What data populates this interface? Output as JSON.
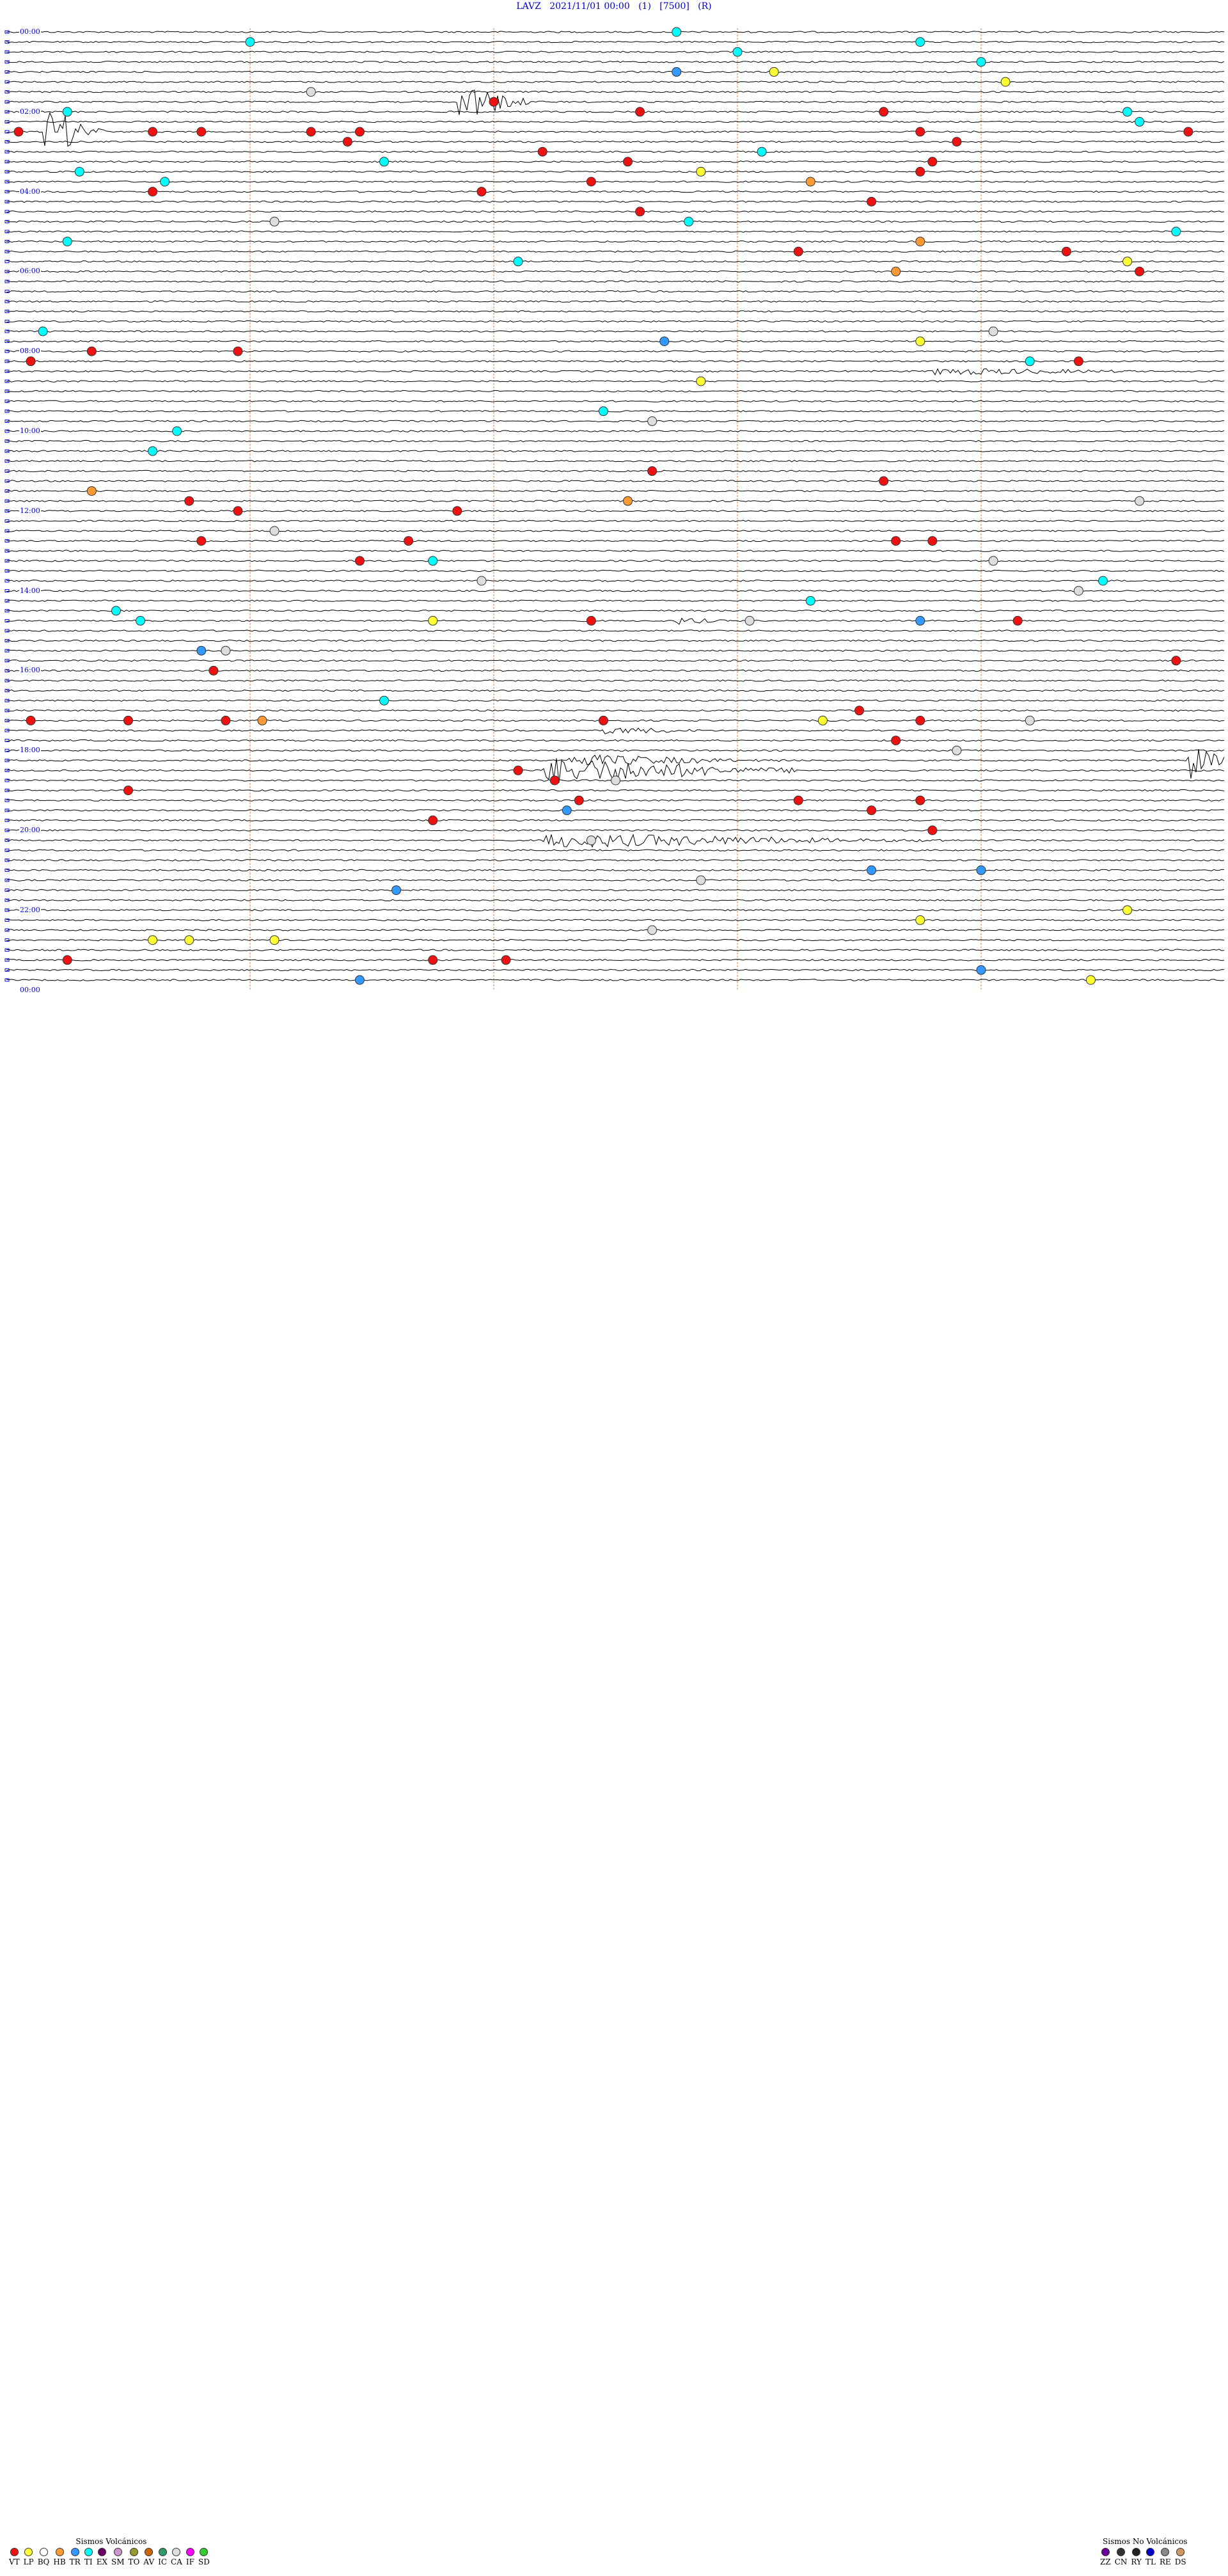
{
  "header": {
    "station": "LAVZ",
    "datetime": "2021/11/01 00:00",
    "component": "(1)",
    "gain": "[7500]",
    "flag": "(R)"
  },
  "chart_data": {
    "type": "helicorder",
    "title": "LAVZ   2021/11/01 00:00   (1)   [7500]   (R)",
    "rows": 96,
    "minutes_per_row": 15,
    "hour_labels": [
      "00:00",
      "02:00",
      "04:00",
      "06:00",
      "08:00",
      "10:00",
      "12:00",
      "14:00",
      "16:00",
      "18:00",
      "20:00",
      "22:00",
      "00:00"
    ],
    "trace_colors": [
      "#000000",
      "#000000"
    ],
    "minute_marks": [
      0.2,
      0.4,
      0.6,
      0.8
    ],
    "minute_mark_color": "#e08040",
    "events": [
      {
        "row": 0,
        "pos": 0.55,
        "type": "TI"
      },
      {
        "row": 1,
        "pos": 0.2,
        "type": "TI"
      },
      {
        "row": 1,
        "pos": 0.75,
        "type": "TI"
      },
      {
        "row": 2,
        "pos": 0.6,
        "type": "TI"
      },
      {
        "row": 3,
        "pos": 0.8,
        "type": "TI"
      },
      {
        "row": 4,
        "pos": 0.55,
        "type": "TR"
      },
      {
        "row": 4,
        "pos": 0.63,
        "type": "LP"
      },
      {
        "row": 5,
        "pos": 0.82,
        "type": "LP"
      },
      {
        "row": 6,
        "pos": 0.25,
        "type": "CA"
      },
      {
        "row": 7,
        "pos": 0.4,
        "type": "VT"
      },
      {
        "row": 8,
        "pos": 0.05,
        "type": "TI"
      },
      {
        "row": 8,
        "pos": 0.52,
        "type": "VT"
      },
      {
        "row": 8,
        "pos": 0.72,
        "type": "VT"
      },
      {
        "row": 8,
        "pos": 0.92,
        "type": "TI"
      },
      {
        "row": 9,
        "pos": 0.93,
        "type": "TI"
      },
      {
        "row": 10,
        "pos": 0.01,
        "type": "VT"
      },
      {
        "row": 10,
        "pos": 0.12,
        "type": "VT"
      },
      {
        "row": 10,
        "pos": 0.16,
        "type": "VT"
      },
      {
        "row": 10,
        "pos": 0.25,
        "type": "VT"
      },
      {
        "row": 10,
        "pos": 0.29,
        "type": "VT"
      },
      {
        "row": 10,
        "pos": 0.75,
        "type": "VT"
      },
      {
        "row": 10,
        "pos": 0.97,
        "type": "VT"
      },
      {
        "row": 11,
        "pos": 0.28,
        "type": "VT"
      },
      {
        "row": 11,
        "pos": 0.78,
        "type": "VT"
      },
      {
        "row": 12,
        "pos": 0.44,
        "type": "VT"
      },
      {
        "row": 12,
        "pos": 0.62,
        "type": "TI"
      },
      {
        "row": 13,
        "pos": 0.31,
        "type": "TI"
      },
      {
        "row": 13,
        "pos": 0.51,
        "type": "VT"
      },
      {
        "row": 13,
        "pos": 0.76,
        "type": "VT"
      },
      {
        "row": 14,
        "pos": 0.06,
        "type": "TI"
      },
      {
        "row": 14,
        "pos": 0.57,
        "type": "LP"
      },
      {
        "row": 14,
        "pos": 0.75,
        "type": "VT"
      },
      {
        "row": 15,
        "pos": 0.13,
        "type": "TI"
      },
      {
        "row": 15,
        "pos": 0.48,
        "type": "VT"
      },
      {
        "row": 15,
        "pos": 0.66,
        "type": "HB"
      },
      {
        "row": 16,
        "pos": 0.12,
        "type": "VT"
      },
      {
        "row": 16,
        "pos": 0.39,
        "type": "VT"
      },
      {
        "row": 17,
        "pos": 0.71,
        "type": "VT"
      },
      {
        "row": 18,
        "pos": 0.52,
        "type": "VT"
      },
      {
        "row": 19,
        "pos": 0.22,
        "type": "CA"
      },
      {
        "row": 19,
        "pos": 0.56,
        "type": "TI"
      },
      {
        "row": 20,
        "pos": 0.96,
        "type": "TI"
      },
      {
        "row": 21,
        "pos": 0.05,
        "type": "TI"
      },
      {
        "row": 21,
        "pos": 0.75,
        "type": "HB"
      },
      {
        "row": 22,
        "pos": 0.65,
        "type": "VT"
      },
      {
        "row": 22,
        "pos": 0.87,
        "type": "VT"
      },
      {
        "row": 23,
        "pos": 0.42,
        "type": "TI"
      },
      {
        "row": 23,
        "pos": 0.92,
        "type": "LP"
      },
      {
        "row": 24,
        "pos": 0.73,
        "type": "HB"
      },
      {
        "row": 24,
        "pos": 0.93,
        "type": "VT"
      },
      {
        "row": 30,
        "pos": 0.03,
        "type": "TI"
      },
      {
        "row": 30,
        "pos": 0.81,
        "type": "CA"
      },
      {
        "row": 31,
        "pos": 0.54,
        "type": "TR"
      },
      {
        "row": 31,
        "pos": 0.75,
        "type": "LP"
      },
      {
        "row": 32,
        "pos": 0.07,
        "type": "VT"
      },
      {
        "row": 32,
        "pos": 0.19,
        "type": "VT"
      },
      {
        "row": 33,
        "pos": 0.02,
        "type": "VT"
      },
      {
        "row": 33,
        "pos": 0.84,
        "type": "TI"
      },
      {
        "row": 33,
        "pos": 0.88,
        "type": "VT"
      },
      {
        "row": 35,
        "pos": 0.57,
        "type": "LP"
      },
      {
        "row": 38,
        "pos": 0.49,
        "type": "TI"
      },
      {
        "row": 39,
        "pos": 0.53,
        "type": "CA"
      },
      {
        "row": 40,
        "pos": 0.14,
        "type": "TI"
      },
      {
        "row": 42,
        "pos": 0.12,
        "type": "TI"
      },
      {
        "row": 44,
        "pos": 0.53,
        "type": "VT"
      },
      {
        "row": 45,
        "pos": 0.72,
        "type": "VT"
      },
      {
        "row": 46,
        "pos": 0.07,
        "type": "HB"
      },
      {
        "row": 47,
        "pos": 0.15,
        "type": "VT"
      },
      {
        "row": 47,
        "pos": 0.51,
        "type": "HB"
      },
      {
        "row": 47,
        "pos": 0.93,
        "type": "CA"
      },
      {
        "row": 48,
        "pos": 0.19,
        "type": "VT"
      },
      {
        "row": 48,
        "pos": 0.37,
        "type": "VT"
      },
      {
        "row": 50,
        "pos": 0.22,
        "type": "CA"
      },
      {
        "row": 51,
        "pos": 0.16,
        "type": "VT"
      },
      {
        "row": 51,
        "pos": 0.33,
        "type": "VT"
      },
      {
        "row": 51,
        "pos": 0.73,
        "type": "VT"
      },
      {
        "row": 51,
        "pos": 0.76,
        "type": "VT"
      },
      {
        "row": 53,
        "pos": 0.29,
        "type": "VT"
      },
      {
        "row": 53,
        "pos": 0.35,
        "type": "TI"
      },
      {
        "row": 53,
        "pos": 0.81,
        "type": "CA"
      },
      {
        "row": 55,
        "pos": 0.39,
        "type": "CA"
      },
      {
        "row": 55,
        "pos": 0.9,
        "type": "TI"
      },
      {
        "row": 56,
        "pos": 0.88,
        "type": "CA"
      },
      {
        "row": 57,
        "pos": 0.66,
        "type": "TI"
      },
      {
        "row": 58,
        "pos": 0.09,
        "type": "TI"
      },
      {
        "row": 59,
        "pos": 0.11,
        "type": "TI"
      },
      {
        "row": 59,
        "pos": 0.35,
        "type": "LP"
      },
      {
        "row": 59,
        "pos": 0.48,
        "type": "VT"
      },
      {
        "row": 59,
        "pos": 0.61,
        "type": "CA"
      },
      {
        "row": 59,
        "pos": 0.75,
        "type": "TR"
      },
      {
        "row": 59,
        "pos": 0.83,
        "type": "VT"
      },
      {
        "row": 62,
        "pos": 0.16,
        "type": "TR"
      },
      {
        "row": 62,
        "pos": 0.18,
        "type": "CA"
      },
      {
        "row": 63,
        "pos": 0.96,
        "type": "VT"
      },
      {
        "row": 64,
        "pos": 0.17,
        "type": "VT"
      },
      {
        "row": 67,
        "pos": 0.31,
        "type": "TI"
      },
      {
        "row": 68,
        "pos": 0.7,
        "type": "VT"
      },
      {
        "row": 69,
        "pos": 0.02,
        "type": "VT"
      },
      {
        "row": 69,
        "pos": 0.1,
        "type": "VT"
      },
      {
        "row": 69,
        "pos": 0.18,
        "type": "VT"
      },
      {
        "row": 69,
        "pos": 0.21,
        "type": "HB"
      },
      {
        "row": 69,
        "pos": 0.49,
        "type": "VT"
      },
      {
        "row": 69,
        "pos": 0.67,
        "type": "LP"
      },
      {
        "row": 69,
        "pos": 0.75,
        "type": "VT"
      },
      {
        "row": 69,
        "pos": 0.84,
        "type": "CA"
      },
      {
        "row": 71,
        "pos": 0.73,
        "type": "VT"
      },
      {
        "row": 72,
        "pos": 0.78,
        "type": "CA"
      },
      {
        "row": 74,
        "pos": 0.42,
        "type": "VT"
      },
      {
        "row": 75,
        "pos": 0.45,
        "type": "VT"
      },
      {
        "row": 75,
        "pos": 0.5,
        "type": "CA"
      },
      {
        "row": 76,
        "pos": 0.1,
        "type": "VT"
      },
      {
        "row": 77,
        "pos": 0.47,
        "type": "VT"
      },
      {
        "row": 77,
        "pos": 0.65,
        "type": "VT"
      },
      {
        "row": 77,
        "pos": 0.75,
        "type": "VT"
      },
      {
        "row": 78,
        "pos": 0.46,
        "type": "TR"
      },
      {
        "row": 78,
        "pos": 0.71,
        "type": "VT"
      },
      {
        "row": 79,
        "pos": 0.35,
        "type": "VT"
      },
      {
        "row": 80,
        "pos": 0.76,
        "type": "VT"
      },
      {
        "row": 81,
        "pos": 0.48,
        "type": "CA"
      },
      {
        "row": 84,
        "pos": 0.71,
        "type": "TR"
      },
      {
        "row": 84,
        "pos": 0.8,
        "type": "TR"
      },
      {
        "row": 85,
        "pos": 0.57,
        "type": "CA"
      },
      {
        "row": 86,
        "pos": 0.32,
        "type": "TR"
      },
      {
        "row": 88,
        "pos": 0.92,
        "type": "LP"
      },
      {
        "row": 89,
        "pos": 0.75,
        "type": "LP"
      },
      {
        "row": 90,
        "pos": 0.53,
        "type": "CA"
      },
      {
        "row": 91,
        "pos": 0.12,
        "type": "LP"
      },
      {
        "row": 91,
        "pos": 0.15,
        "type": "LP"
      },
      {
        "row": 91,
        "pos": 0.22,
        "type": "LP"
      },
      {
        "row": 93,
        "pos": 0.05,
        "type": "VT"
      },
      {
        "row": 93,
        "pos": 0.35,
        "type": "VT"
      },
      {
        "row": 93,
        "pos": 0.41,
        "type": "VT"
      },
      {
        "row": 94,
        "pos": 0.8,
        "type": "TR"
      },
      {
        "row": 95,
        "pos": 0.29,
        "type": "TR"
      },
      {
        "row": 95,
        "pos": 0.89,
        "type": "LP"
      }
    ],
    "bursts": [
      {
        "row": 10,
        "start": 0.03,
        "end": 0.08,
        "amp": 1.0
      },
      {
        "row": 7,
        "start": 0.37,
        "end": 0.43,
        "amp": 0.8
      },
      {
        "row": 34,
        "start": 0.76,
        "end": 0.98,
        "amp": 0.15
      },
      {
        "row": 59,
        "start": 0.55,
        "end": 0.6,
        "amp": 0.15
      },
      {
        "row": 70,
        "start": 0.49,
        "end": 0.6,
        "amp": 0.15
      },
      {
        "row": 73,
        "start": 0.46,
        "end": 0.64,
        "amp": 0.25
      },
      {
        "row": 73,
        "start": 0.97,
        "end": 1.0,
        "amp": 0.9
      },
      {
        "row": 74,
        "start": 0.44,
        "end": 0.65,
        "amp": 0.55
      },
      {
        "row": 81,
        "start": 0.44,
        "end": 0.77,
        "amp": 0.3
      }
    ]
  },
  "legend": {
    "volcanic": {
      "title": "Sismos Volcánicos",
      "items": [
        {
          "code": "VT",
          "color": "#ee1111"
        },
        {
          "code": "LP",
          "color": "#ffff33"
        },
        {
          "code": "BQ",
          "color": "#ffffff"
        },
        {
          "code": "HB",
          "color": "#ff9933"
        },
        {
          "code": "TR",
          "color": "#3399ff"
        },
        {
          "code": "TI",
          "color": "#00ffff"
        },
        {
          "code": "EX",
          "color": "#660066"
        },
        {
          "code": "SM",
          "color": "#cc99cc"
        },
        {
          "code": "TO",
          "color": "#999933"
        },
        {
          "code": "AV",
          "color": "#cc6600"
        },
        {
          "code": "IC",
          "color": "#339966"
        },
        {
          "code": "CA",
          "color": "#dddddd"
        },
        {
          "code": "IF",
          "color": "#ff00ff"
        },
        {
          "code": "SD",
          "color": "#33cc33"
        }
      ]
    },
    "non_volcanic": {
      "title": "Sismos No Volcánicos",
      "items": [
        {
          "code": "ZZ",
          "color": "#660099"
        },
        {
          "code": "CN",
          "color": "#333333"
        },
        {
          "code": "RY",
          "color": "#222222"
        },
        {
          "code": "TL",
          "color": "#0000cc"
        },
        {
          "code": "RE",
          "color": "#888888"
        },
        {
          "code": "DS",
          "color": "#cc9966"
        }
      ]
    }
  }
}
